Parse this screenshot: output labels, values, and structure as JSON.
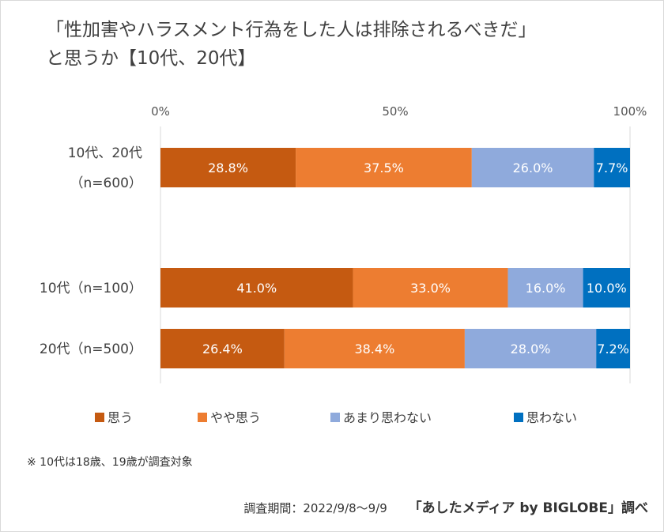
{
  "title_lines": [
    "「性加害やハラスメント行為をした人は排除されるべきだ」",
    "と思うか【10代、20代】"
  ],
  "chart_data": {
    "type": "bar",
    "orientation": "horizontal",
    "stacked": true,
    "xlim": [
      0,
      100
    ],
    "x_ticks": [
      "0%",
      "50%",
      "100%"
    ],
    "grid": false,
    "legend_position": "bottom",
    "categories": [
      [
        "10代、20代",
        "（n=600）"
      ],
      [
        "10代（n=100）"
      ],
      [
        "20代（n=500）"
      ]
    ],
    "series": [
      {
        "name": "思う",
        "color": "#c55a11",
        "values": [
          28.8,
          41.0,
          26.4
        ],
        "labels": [
          "28.8%",
          "41.0%",
          "26.4%"
        ]
      },
      {
        "name": "やや思う",
        "color": "#ed7d31",
        "values": [
          37.5,
          33.0,
          38.4
        ],
        "labels": [
          "37.5%",
          "33.0%",
          "38.4%"
        ]
      },
      {
        "name": "あまり思わない",
        "color": "#8faadc",
        "values": [
          26.0,
          16.0,
          28.0
        ],
        "labels": [
          "26.0%",
          "16.0%",
          "28.0%"
        ]
      },
      {
        "name": "思わない",
        "color": "#0070c0",
        "values": [
          7.7,
          10.0,
          7.2
        ],
        "labels": [
          "7.7%",
          "10.0%",
          "7.2%"
        ]
      }
    ]
  },
  "note": "※ 10代は18歳、19歳が調査対象",
  "footer": {
    "period": "調査期間：2022/9/8～9/9",
    "source": "「あしたメディア by BIGLOBE」調べ"
  }
}
